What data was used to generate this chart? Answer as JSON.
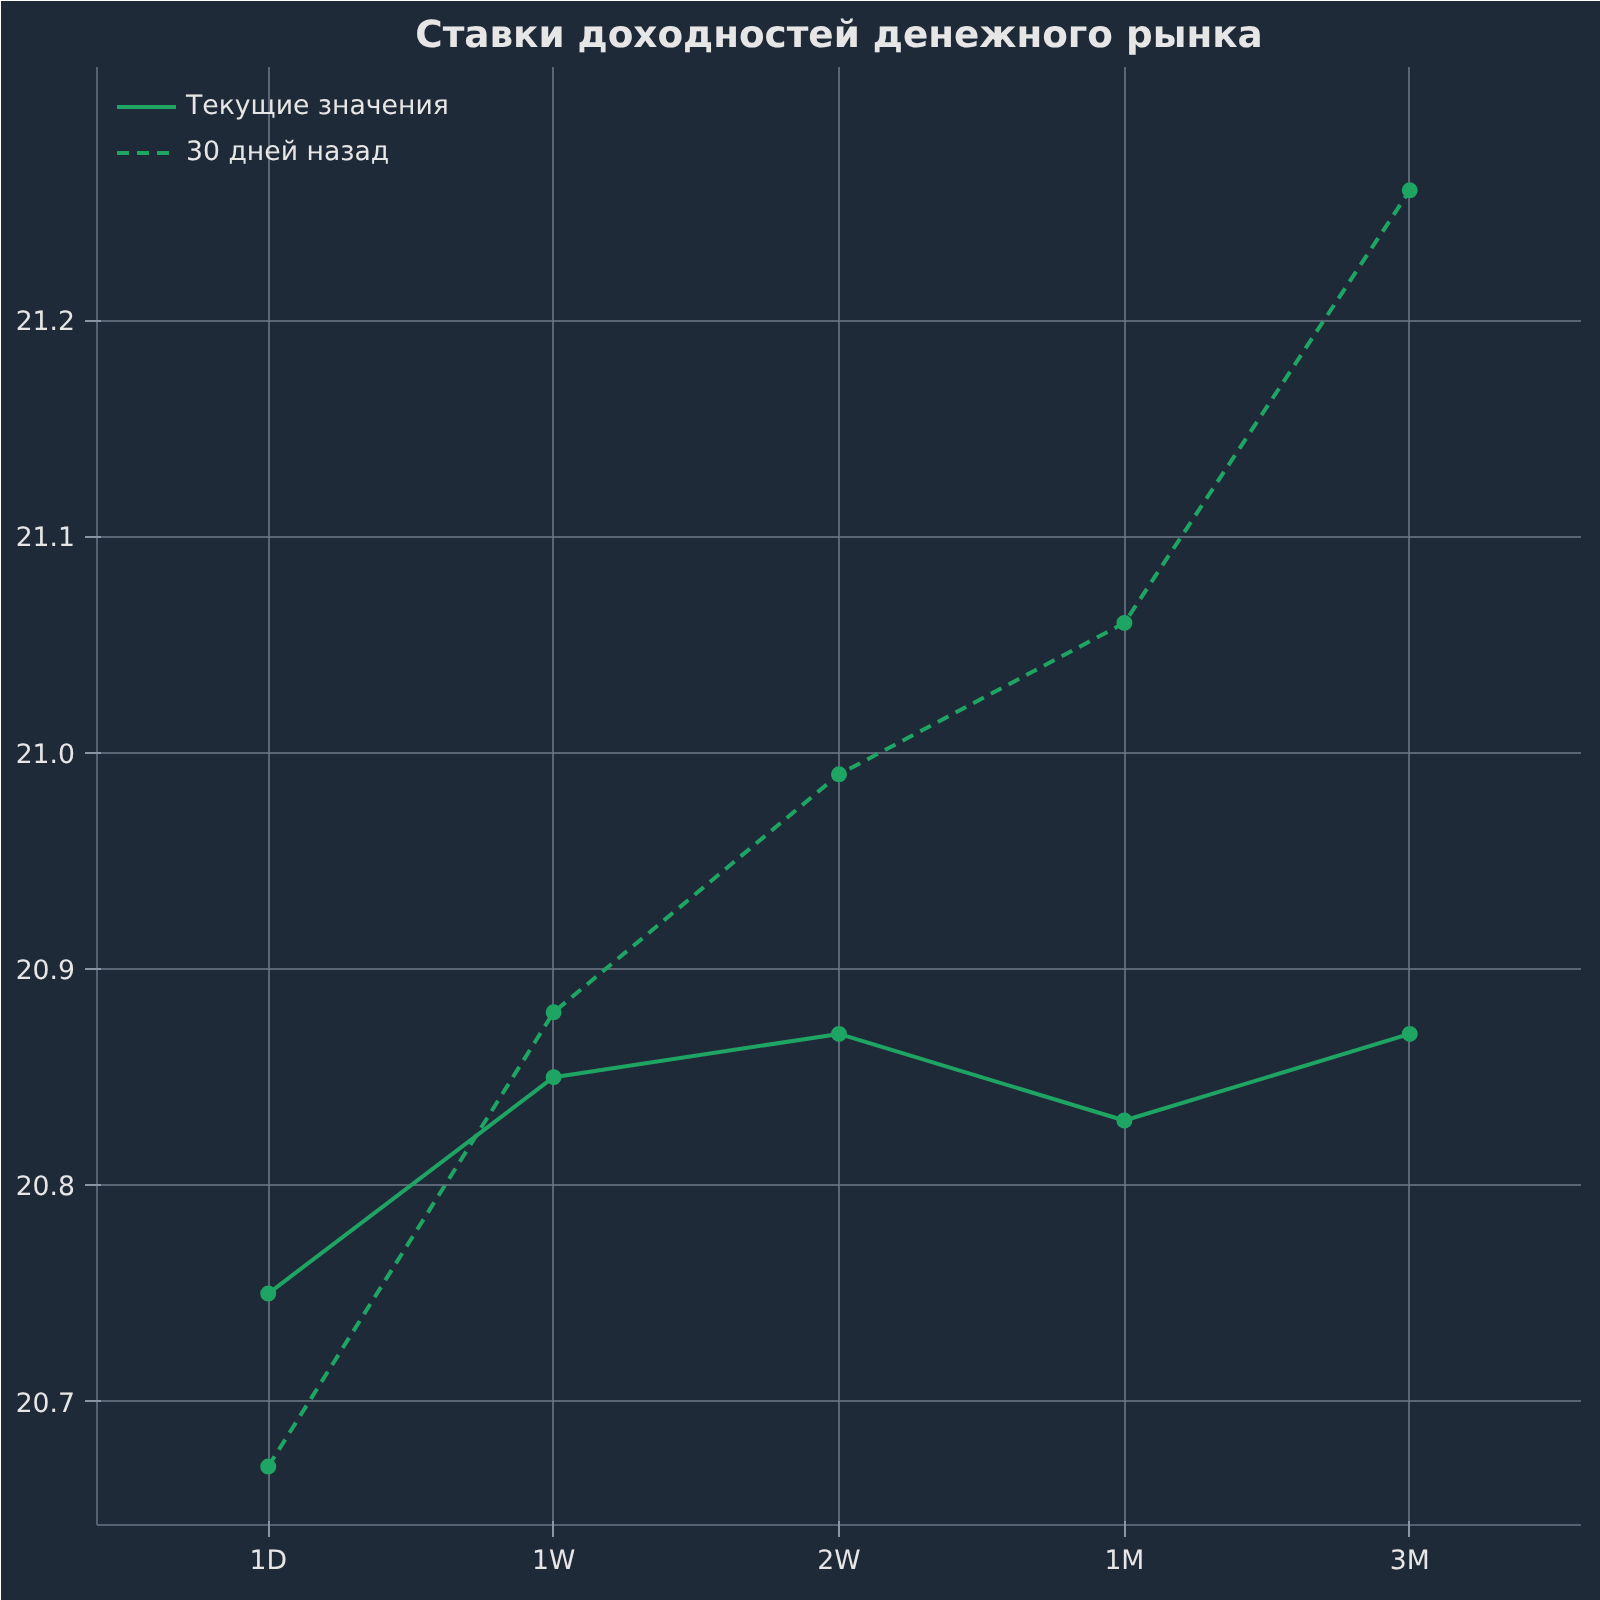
{
  "chart_data": {
    "type": "line",
    "title": "Ставки доходностей денежного рынка",
    "categories": [
      "1D",
      "1W",
      "2W",
      "1M",
      "3M"
    ],
    "ylim": [
      20.643,
      21.317
    ],
    "yticks": [
      20.7,
      20.8,
      20.9,
      {
        "value": 21.0,
        "label": "21.0"
      },
      21.1,
      21.2
    ],
    "series": [
      {
        "name": "Текущие значения",
        "color": "#1fa563",
        "line_style": "solid",
        "values": [
          20.75,
          20.85,
          20.87,
          20.83,
          20.87
        ]
      },
      {
        "name": "30 дней назад",
        "color": "#1fa563",
        "line_style": "dashed",
        "values": [
          20.67,
          20.88,
          20.99,
          21.06,
          21.26
        ]
      }
    ],
    "marker": "circle",
    "grid": true,
    "legend": "top left"
  }
}
